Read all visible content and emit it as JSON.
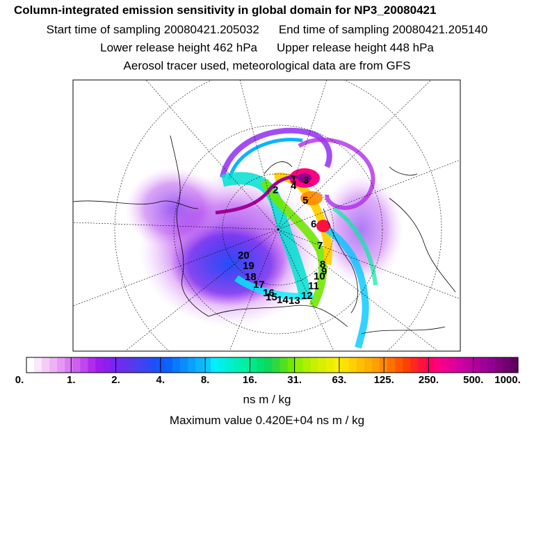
{
  "header": {
    "title": "Column-integrated emission sensitivity in global domain for NP3_20080421",
    "start_label": "Start time of sampling 20080421.205032",
    "end_label": "End time of sampling 20080421.205140",
    "lower_label": "Lower release height  462 hPa",
    "upper_label": "Upper release height  448 hPa",
    "note": "Aerosol tracer used, meteorological data are from GFS"
  },
  "chart_data": {
    "type": "heatmap",
    "projection": "polar stereographic map of the Arctic",
    "colorbar": {
      "tick_labels": [
        "0.",
        "1.",
        "2.",
        "4.",
        "8.",
        "16.",
        "31.",
        "63.",
        "125.",
        "250.",
        "500.",
        "1000."
      ],
      "colors": [
        "#ffffff",
        "#fbe6fb",
        "#f4ccf8",
        "#eeb2f6",
        "#e598f4",
        "#da7ef2",
        "#cd60f0",
        "#c046ee",
        "#b02ced",
        "#9d1ced",
        "#8a20f0",
        "#7526f0",
        "#6a2eee",
        "#5c36ea",
        "#4a3ef0",
        "#3646f4",
        "#224ef8",
        "#1458fc",
        "#0a64ff",
        "#0a78ff",
        "#0a8cff",
        "#0aa0ff",
        "#0ab4ff",
        "#0ac8ff",
        "#00f0ff",
        "#00f0e8",
        "#00f0d0",
        "#00f0b8",
        "#00f0a0",
        "#00e888",
        "#00e070",
        "#10d858",
        "#30d840",
        "#50e020",
        "#70e800",
        "#90f000",
        "#b0f000",
        "#c8f000",
        "#d8f000",
        "#e8f000",
        "#f8f000",
        "#ffe000",
        "#ffd000",
        "#ffc000",
        "#ffb000",
        "#ffa000",
        "#ff8800",
        "#ff7000",
        "#ff5800",
        "#ff4000",
        "#ff2820",
        "#ff1040",
        "#ff0060",
        "#ff0080",
        "#f00090",
        "#e00098",
        "#d000a0",
        "#c000a0",
        "#b0009c",
        "#a00098",
        "#900090",
        "#800080",
        "#700070",
        "#600060"
      ],
      "units": "ns m / kg"
    },
    "max_value_text": "Maximum value  0.420E+04 ns m / kg",
    "track_labels": [
      "1",
      "2",
      "3",
      "4",
      "5",
      "6",
      "7",
      "8",
      "9",
      "10",
      "11",
      "12",
      "13",
      "14",
      "15",
      "16",
      "17",
      "18",
      "19",
      "20"
    ]
  }
}
